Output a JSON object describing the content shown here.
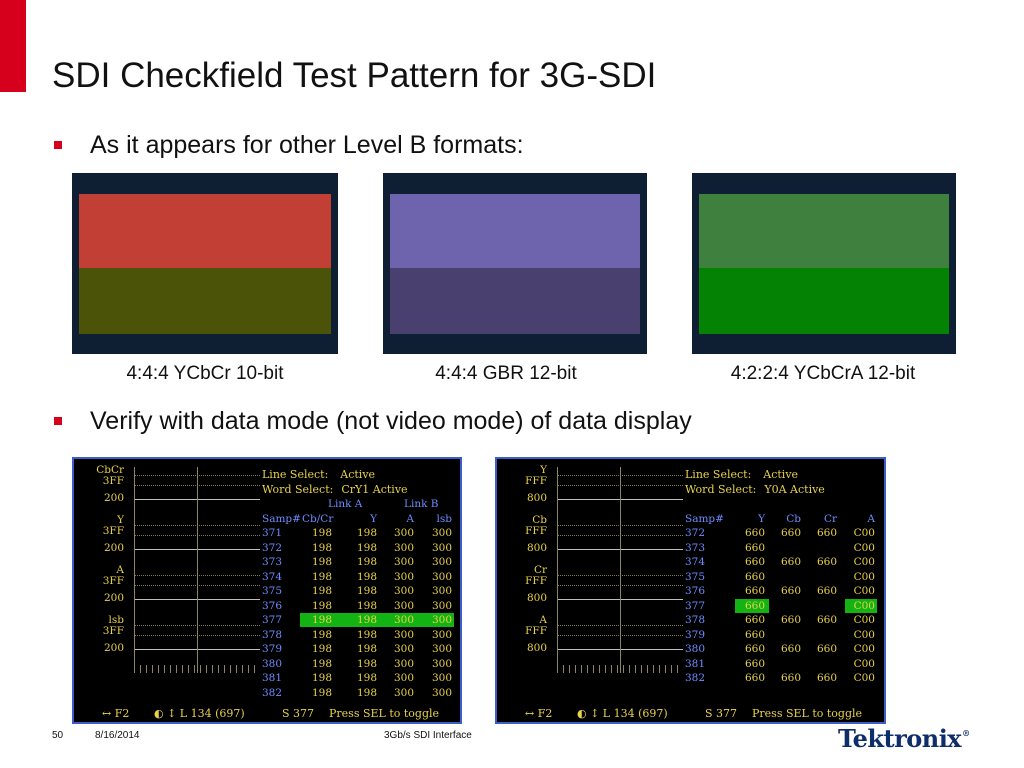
{
  "slide": {
    "title": "SDI Checkfield Test Pattern for 3G-SDI",
    "bullet1": "As it appears for other Level B formats:",
    "bullet2": "Verify with data mode (not video mode) of data display",
    "colors": {
      "accent": "#d6001c",
      "scope_border": "#3c5ec9",
      "scope_text": "#e8d24a",
      "scope_value": "#e8d24a",
      "scope_index": "#6d8dff",
      "highlight": "#13b313"
    }
  },
  "patches": [
    {
      "caption": "4:4:4 YCbCr 10-bit",
      "top_color": "#c13f35",
      "bottom_color": "#4a5308"
    },
    {
      "caption": "4:4:4 GBR 12-bit",
      "top_color": "#6e63ad",
      "bottom_color": "#4a406f"
    },
    {
      "caption": "4:2:2:4 YCbCrA 12-bit",
      "top_color": "#40803e",
      "bottom_color": "#038203"
    }
  ],
  "scope1": {
    "waveform_labels": [
      [
        "CbCr",
        "3FF"
      ],
      [
        "200"
      ],
      [
        "Y",
        "3FF"
      ],
      [
        "200"
      ],
      [
        "A",
        "3FF"
      ],
      [
        "200"
      ],
      [
        "lsb",
        "3FF"
      ],
      [
        "200"
      ]
    ],
    "line_select_label": "Line Select:",
    "line_select_value": "Active",
    "word_select_label": "Word Select:",
    "word_select_value": "CrY1 Active",
    "link_a": "Link A",
    "link_b": "Link B",
    "columns": [
      "Samp#",
      "Cb/Cr",
      "Y",
      "A",
      "lsb"
    ],
    "rows": [
      [
        "371",
        "198",
        "198",
        "300",
        "300"
      ],
      [
        "372",
        "198",
        "198",
        "300",
        "300"
      ],
      [
        "373",
        "198",
        "198",
        "300",
        "300"
      ],
      [
        "374",
        "198",
        "198",
        "300",
        "300"
      ],
      [
        "375",
        "198",
        "198",
        "300",
        "300"
      ],
      [
        "376",
        "198",
        "198",
        "300",
        "300"
      ],
      [
        "377",
        "198",
        "198",
        "300",
        "300"
      ],
      [
        "378",
        "198",
        "198",
        "300",
        "300"
      ],
      [
        "379",
        "198",
        "198",
        "300",
        "300"
      ],
      [
        "380",
        "198",
        "198",
        "300",
        "300"
      ],
      [
        "381",
        "198",
        "198",
        "300",
        "300"
      ],
      [
        "382",
        "198",
        "198",
        "300",
        "300"
      ]
    ],
    "highlight_row": 6,
    "footer": {
      "field": "↔ F2",
      "line": "◐ ↕ L 134 (697)",
      "sample": "S 377",
      "hint": "Press SEL to toggle"
    }
  },
  "scope2": {
    "waveform_labels": [
      [
        "Y",
        "FFF"
      ],
      [
        "800"
      ],
      [
        "Cb",
        "FFF"
      ],
      [
        "800"
      ],
      [
        "Cr",
        "FFF"
      ],
      [
        "800"
      ],
      [
        "A",
        "FFF"
      ],
      [
        "800"
      ]
    ],
    "line_select_label": "Line Select:",
    "line_select_value": "Active",
    "word_select_label": "Word Select:",
    "word_select_value": "Y0A Active",
    "columns": [
      "Samp#",
      "Y",
      "Cb",
      "Cr",
      "A"
    ],
    "rows": [
      [
        "372",
        "660",
        "660",
        "660",
        "C00"
      ],
      [
        "373",
        "660",
        "",
        "",
        "C00"
      ],
      [
        "374",
        "660",
        "660",
        "660",
        "C00"
      ],
      [
        "375",
        "660",
        "",
        "",
        "C00"
      ],
      [
        "376",
        "660",
        "660",
        "660",
        "C00"
      ],
      [
        "377",
        "660",
        "",
        "",
        "C00"
      ],
      [
        "378",
        "660",
        "660",
        "660",
        "C00"
      ],
      [
        "379",
        "660",
        "",
        "",
        "C00"
      ],
      [
        "380",
        "660",
        "660",
        "660",
        "C00"
      ],
      [
        "381",
        "660",
        "",
        "",
        "C00"
      ],
      [
        "382",
        "660",
        "660",
        "660",
        "C00"
      ]
    ],
    "highlight_row": 5,
    "footer": {
      "field": "↔ F2",
      "line": "◐ ↕ L 134 (697)",
      "sample": "S 377",
      "hint": "Press SEL to toggle"
    }
  },
  "footer": {
    "page_number": "50",
    "date": "8/16/2014",
    "center_text": "3Gb/s SDI Interface",
    "logo": "Tektronix",
    "logo_mark": "®"
  }
}
